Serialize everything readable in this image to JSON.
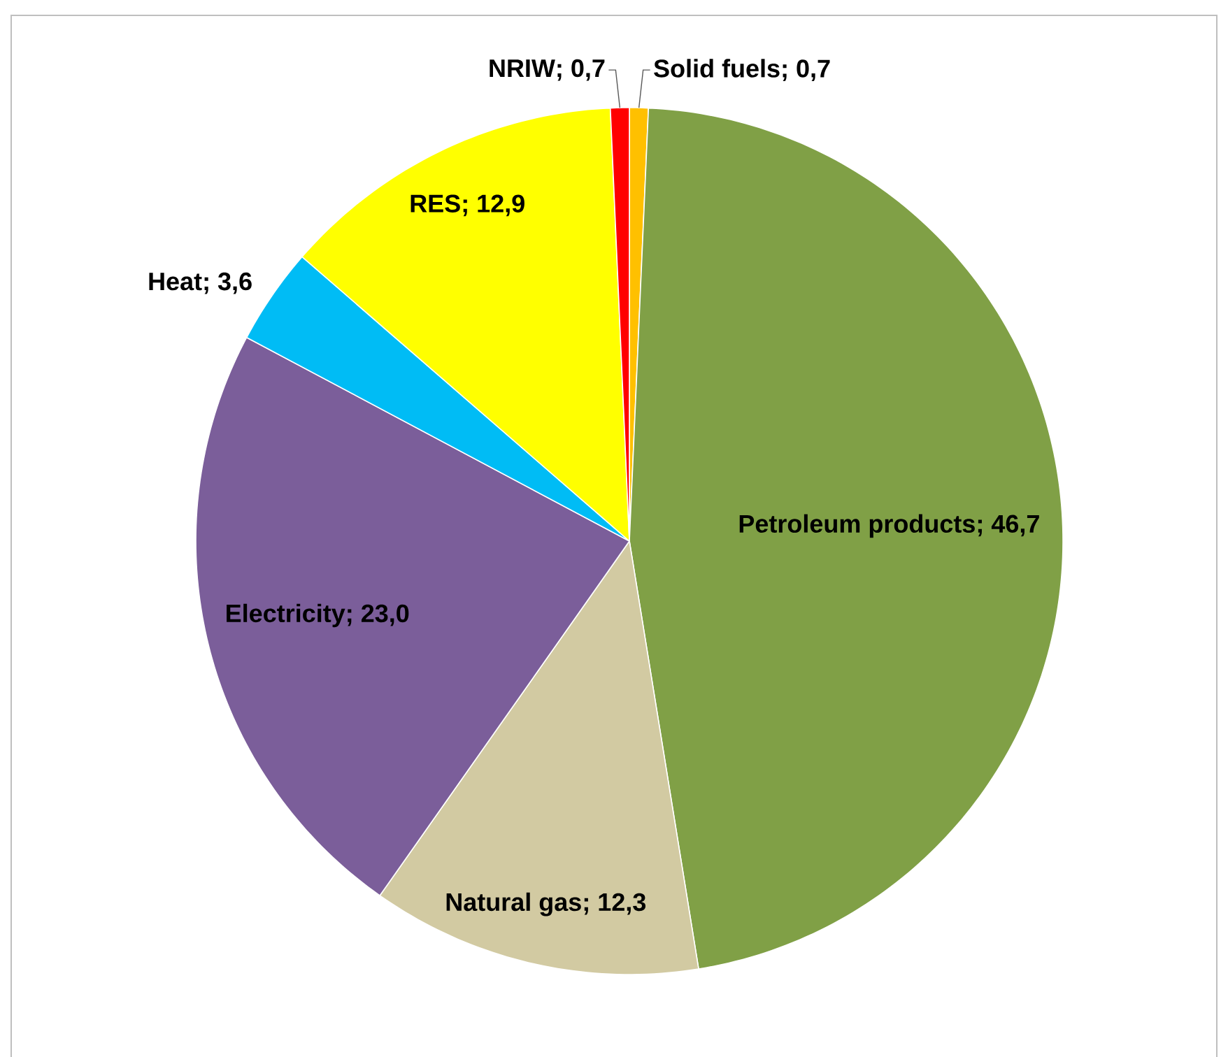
{
  "chart_data": {
    "type": "pie",
    "categories": [
      "Solid fuels",
      "Petroleum products",
      "Natural gas",
      "Electricity",
      "Heat",
      "RES",
      "NRIW"
    ],
    "values": [
      0.7,
      46.7,
      12.3,
      23.0,
      3.6,
      12.9,
      0.7
    ],
    "value_labels": [
      "; 0,7",
      "; 46,7",
      "; 12,3",
      "; 23,0",
      "; 3,6",
      "; 12,9",
      "; 0,7"
    ],
    "colors": [
      "#ffc000",
      "#80a046",
      "#d2caa2",
      "#7b5e9a",
      "#00bcf5",
      "#ffff00",
      "#ff0000"
    ]
  }
}
